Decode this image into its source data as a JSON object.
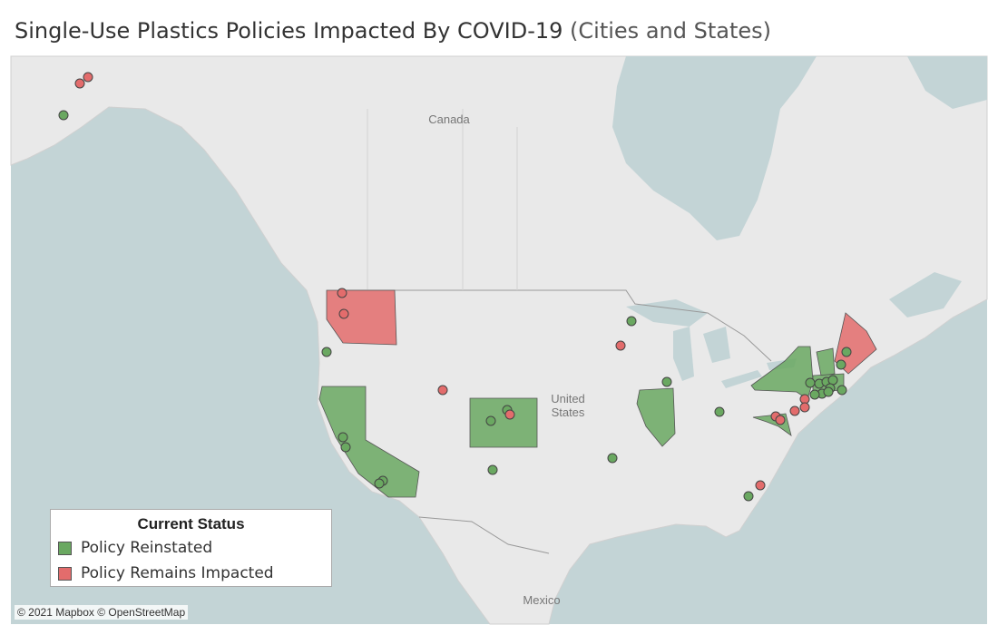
{
  "header": {
    "title": "Single-Use Plastics Policies Impacted By COVID-19",
    "subtitle": "(Cities and States)"
  },
  "map": {
    "labels": [
      "Canada",
      "United States",
      "Mexico"
    ],
    "attribution": "© 2021 Mapbox © OpenStreetMap"
  },
  "legend": {
    "title": "Current Status",
    "items": [
      {
        "label": "Policy Reinstated",
        "color": "#6aa861"
      },
      {
        "label": "Policy Remains Impacted",
        "color": "#e36c6c"
      }
    ]
  }
}
